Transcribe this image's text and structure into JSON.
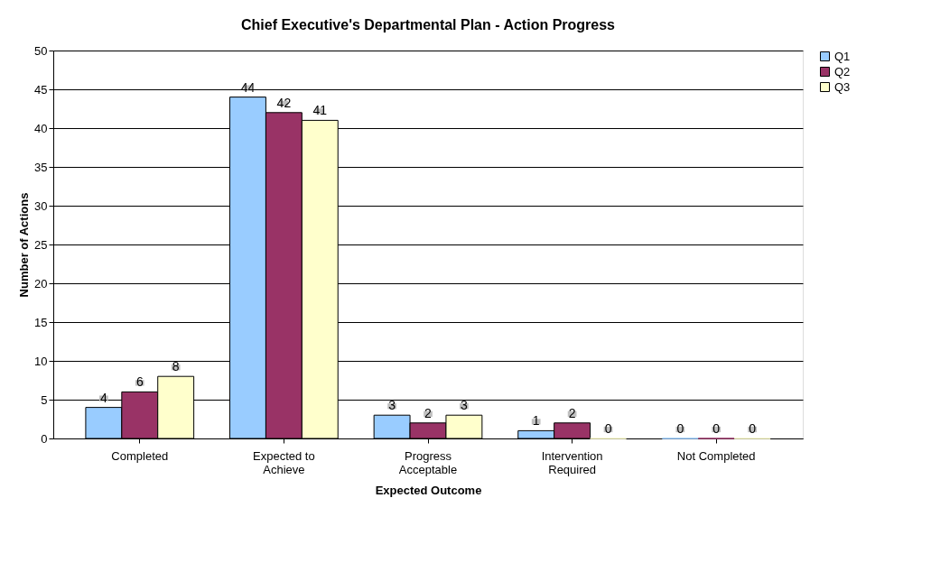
{
  "chart_data": {
    "type": "bar",
    "title": "Chief Executive's Departmental Plan - Action Progress",
    "xlabel": "Expected Outcome",
    "ylabel": "Number of Actions",
    "categories": [
      "Completed",
      "Expected to\nAchieve",
      "Progress\nAcceptable",
      "Intervention\nRequired",
      "Not Completed"
    ],
    "series": [
      {
        "name": "Q1",
        "color": "#99ccff",
        "values": [
          4,
          44,
          3,
          1,
          0
        ]
      },
      {
        "name": "Q2",
        "color": "#993366",
        "values": [
          6,
          42,
          2,
          2,
          0
        ]
      },
      {
        "name": "Q3",
        "color": "#ffffcc",
        "values": [
          8,
          41,
          3,
          0,
          0
        ]
      }
    ],
    "ylim": [
      0,
      50
    ],
    "yticks": [
      0,
      5,
      10,
      15,
      20,
      25,
      30,
      35,
      40,
      45,
      50
    ],
    "grid": "y",
    "legend": "right",
    "data_labels": true
  }
}
